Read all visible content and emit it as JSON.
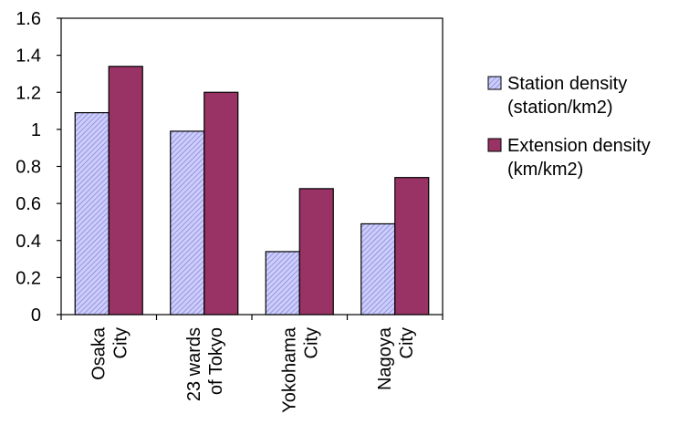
{
  "chart_data": {
    "type": "bar",
    "title": "",
    "xlabel": "",
    "ylabel": "",
    "categories": [
      [
        "Osaka",
        "City"
      ],
      [
        "23 wards",
        "of Tokyo"
      ],
      [
        "Yokohama",
        "City"
      ],
      [
        "Nagoya",
        "City"
      ]
    ],
    "series": [
      {
        "name_lines": [
          "Station density",
          "(station/km2)"
        ],
        "values": [
          1.09,
          0.99,
          0.34,
          0.49
        ],
        "color": "#ccccff",
        "pattern": "diagonal-hatch"
      },
      {
        "name_lines": [
          "Extension density",
          "(km/km2)"
        ],
        "values": [
          1.34,
          1.2,
          0.68,
          0.74
        ],
        "color": "#993366",
        "pattern": "solid"
      }
    ],
    "ylim": [
      0,
      1.6
    ],
    "yticks": [
      "0",
      "0.2",
      "0.4",
      "0.6",
      "0.8",
      "1",
      "1.2",
      "1.4",
      "1.6"
    ],
    "grid": false,
    "legend_position": "right"
  }
}
